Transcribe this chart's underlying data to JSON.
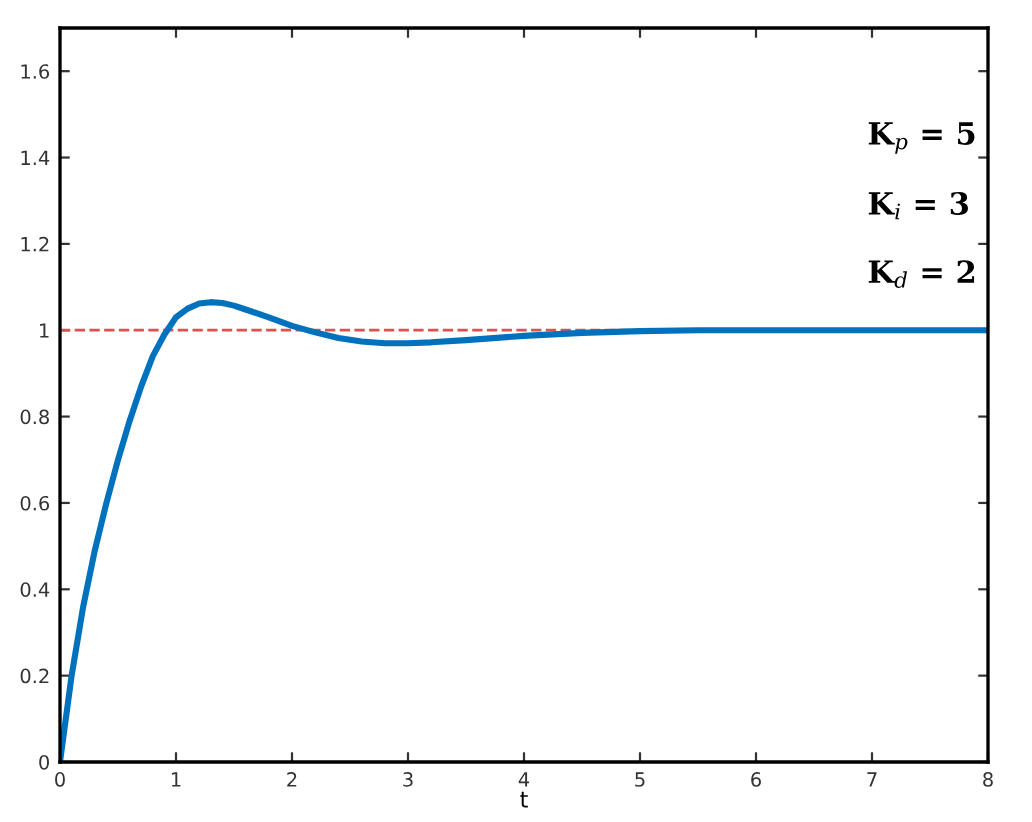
{
  "chart_data": {
    "type": "line",
    "xlabel": "t",
    "x": [
      0,
      0.1,
      0.2,
      0.3,
      0.4,
      0.5,
      0.6,
      0.7,
      0.8,
      0.9,
      1.0,
      1.1,
      1.2,
      1.3,
      1.4,
      1.5,
      1.6,
      1.8,
      2.0,
      2.2,
      2.4,
      2.6,
      2.8,
      3.0,
      3.2,
      3.5,
      4.0,
      4.5,
      5.0,
      5.5,
      6.0,
      7.0,
      8.0
    ],
    "series": [
      {
        "color": "#0072bd",
        "values": [
          0,
          0.2,
          0.36,
          0.49,
          0.6,
          0.7,
          0.79,
          0.87,
          0.94,
          0.99,
          1.03,
          1.05,
          1.062,
          1.065,
          1.063,
          1.057,
          1.048,
          1.03,
          1.01,
          0.995,
          0.982,
          0.974,
          0.97,
          0.97,
          0.972,
          0.977,
          0.987,
          0.994,
          0.998,
          1.0,
          1.0,
          1.0,
          1.0
        ]
      }
    ],
    "xlim": [
      0,
      8
    ],
    "ylim": [
      0,
      1.7
    ],
    "xticks": [
      0,
      1,
      2,
      3,
      4,
      5,
      6,
      7,
      8
    ],
    "yticks": [
      0,
      0.2,
      0.4,
      0.6,
      0.8,
      1,
      1.2,
      1.4,
      1.6
    ],
    "grid": false,
    "legend": false,
    "marker": "none",
    "line_style": "solid",
    "ref_lines": [
      {
        "axis": "y",
        "value": 1,
        "color": "#d9534f",
        "line_style": "dashed"
      }
    ],
    "annotations": [
      {
        "text": "K$_{p}$ = 5"
      },
      {
        "text": "K$_{i}$ = 3"
      },
      {
        "text": "K$_{d}$ = 2"
      }
    ]
  }
}
